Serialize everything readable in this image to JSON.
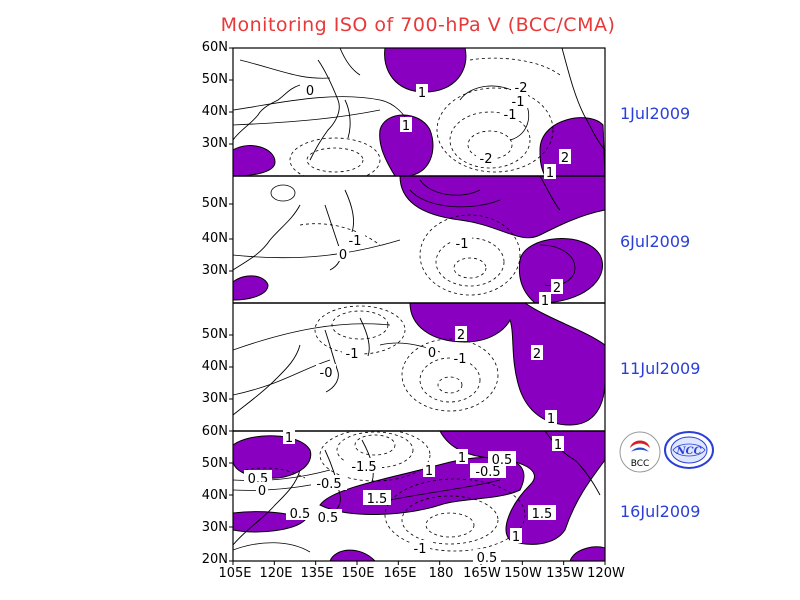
{
  "chart_data": {
    "type": "heatmap",
    "title": "Monitoring ISO of 700-hPa V (BCC/CMA)",
    "variable": "700-hPa meridional wind anomaly (ISO component)",
    "shading": "values > 1 shaded purple",
    "x_ticks": [
      "105E",
      "120E",
      "135E",
      "150E",
      "165E",
      "180",
      "165W",
      "150W",
      "135W",
      "120W"
    ],
    "panels": [
      {
        "date": "1Jul2009",
        "lat_ticks": [
          "60N",
          "50N",
          "40N",
          "30N"
        ],
        "labels": [
          "0",
          "1",
          "1",
          "-2",
          "-1",
          "-1",
          "-2",
          "2",
          "1"
        ]
      },
      {
        "date": "6Jul2009",
        "lat_ticks": [
          "50N",
          "40N",
          "30N"
        ],
        "labels": [
          "-1",
          "0",
          "-1",
          "2",
          "1"
        ]
      },
      {
        "date": "11Jul2009",
        "lat_ticks": [
          "50N",
          "40N",
          "30N"
        ],
        "labels": [
          "2",
          "-1",
          "0",
          "-1",
          "-0",
          "2",
          "1"
        ]
      },
      {
        "date": "16Jul2009",
        "lat_ticks": [
          "60N",
          "50N",
          "40N",
          "30N",
          "20N"
        ],
        "labels": [
          "1",
          "0.5",
          "0",
          "-1.5",
          "-0.5",
          "1",
          "1",
          "-0.5",
          "0.5",
          "1",
          "1.5",
          "0.5",
          "0.5",
          "1.5",
          "1",
          "-1",
          "0.5"
        ]
      }
    ]
  },
  "logos": {
    "left_text": "BCC",
    "right_text": "NCC"
  },
  "colors": {
    "shade": "#8a00c0",
    "title": "#e8383a",
    "date": "#2a3fd8"
  }
}
